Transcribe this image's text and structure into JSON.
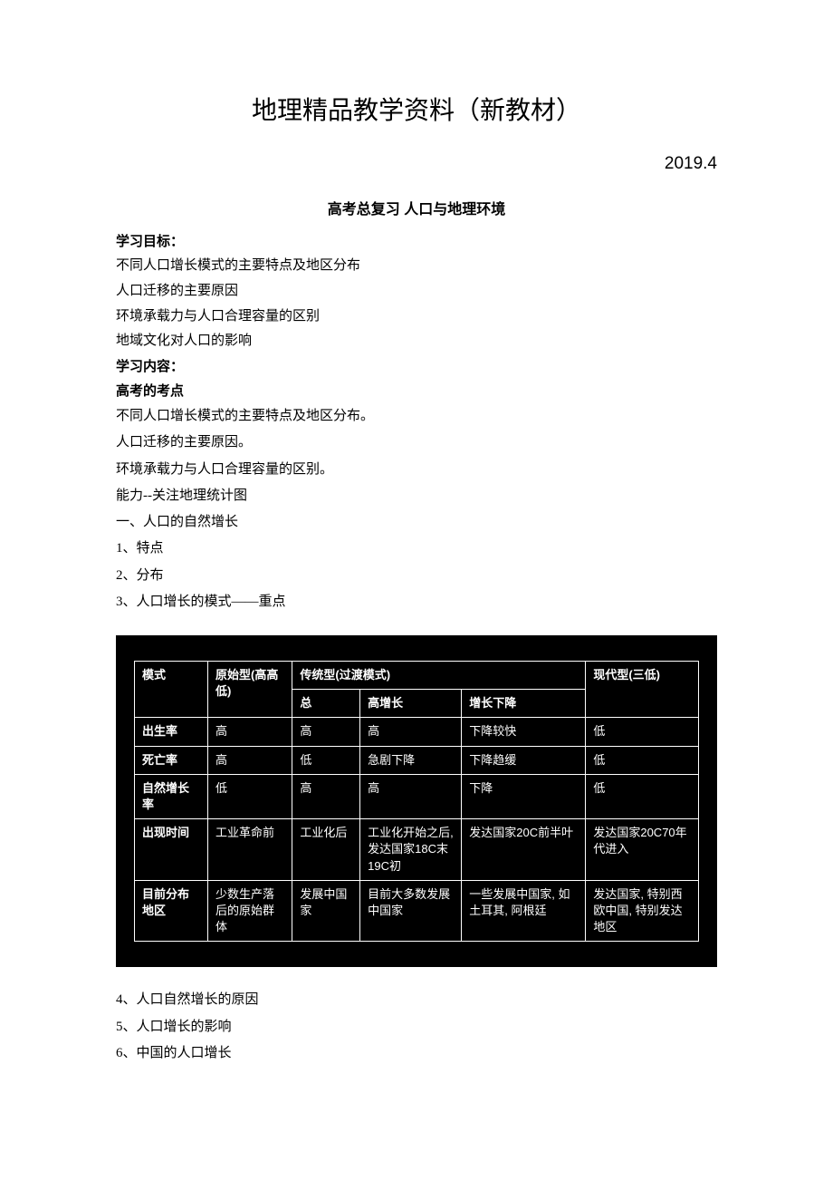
{
  "page": {
    "title": "地理精品教学资料（新教材）",
    "date": "2019.4",
    "subtitle": "高考总复习 人口与地理环境"
  },
  "sections": {
    "goals_header": "学习目标：",
    "goals": [
      "不同人口增长模式的主要特点及地区分布",
      "人口迁移的主要原因",
      "环境承载力与人口合理容量的区别",
      "地域文化对人口的影响"
    ],
    "content_header": "学习内容：",
    "exam_points_header": "高考的考点",
    "exam_points": [
      "不同人口增长模式的主要特点及地区分布。",
      "人口迁移的主要原因。",
      "环境承载力与人口合理容量的区别。",
      "能力--关注地理统计图"
    ],
    "topic_one": "一、人口的自然增长",
    "subtopics_before": [
      "1、特点",
      "2、分布",
      "3、人口增长的模式——重点"
    ],
    "subtopics_after": [
      "4、人口自然增长的原因",
      "5、人口增长的影响",
      "6、中国的人口增长"
    ]
  },
  "table": {
    "header_row_labels": {
      "mode": "模式",
      "primitive": "原始型(高高低)",
      "traditional": "传统型(过渡模式)",
      "modern": "现代型(三低)"
    },
    "sub_headers": {
      "total": "总",
      "high_growth": "高增长",
      "growth_decline": "增长下降"
    },
    "rows": [
      {
        "label": "出生率",
        "c1": "高",
        "c2": "高",
        "c3": "高",
        "c4": "下降较快",
        "c5": "低"
      },
      {
        "label": "死亡率",
        "c1": "高",
        "c2": "低",
        "c3": "急剧下降",
        "c4": "下降趋缓",
        "c5": "低"
      },
      {
        "label": "自然增长率",
        "c1": "低",
        "c2": "高",
        "c3": "高",
        "c4": "下降",
        "c5": "低"
      },
      {
        "label": "出现时间",
        "c1": "工业革命前",
        "c2": "工业化后",
        "c3": "工业化开始之后, 发达国家18C末19C初",
        "c4": "发达国家20C前半叶",
        "c5": "发达国家20C70年代进入"
      },
      {
        "label": "目前分布地区",
        "c1": "少数生产落后的原始群体",
        "c2": "发展中国家",
        "c3": "目前大多数发展中国家",
        "c4": "一些发展中国家, 如土耳其, 阿根廷",
        "c5": "发达国家, 特别西欧中国, 特别发达地区"
      }
    ],
    "styling": {
      "background_color": "#000000",
      "border_color": "#ffffff",
      "text_color": "#ffffff",
      "cell_font_size": 13,
      "font_family": "SimHei"
    }
  }
}
